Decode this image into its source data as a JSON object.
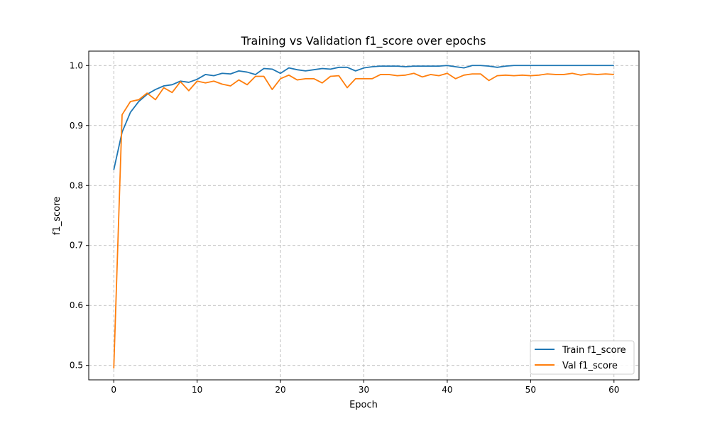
{
  "chart_data": {
    "type": "line",
    "title": "Training vs Validation f1_score over epochs",
    "xlabel": "Epoch",
    "ylabel": "f1_score",
    "xlim": [
      -3,
      63
    ],
    "ylim": [
      0.476,
      1.024
    ],
    "xticks": [
      0,
      10,
      20,
      30,
      40,
      50,
      60
    ],
    "yticks": [
      0.5,
      0.6,
      0.7,
      0.8,
      0.9,
      1.0
    ],
    "ytick_labels": [
      "0.5",
      "0.6",
      "0.7",
      "0.8",
      "0.9",
      "1.0"
    ],
    "grid": true,
    "legend_position": "lower-right",
    "x": [
      0,
      1,
      2,
      3,
      4,
      5,
      6,
      7,
      8,
      9,
      10,
      11,
      12,
      13,
      14,
      15,
      16,
      17,
      18,
      19,
      20,
      21,
      22,
      23,
      24,
      25,
      26,
      27,
      28,
      29,
      30,
      31,
      32,
      33,
      34,
      35,
      36,
      37,
      38,
      39,
      40,
      41,
      42,
      43,
      44,
      45,
      46,
      47,
      48,
      49,
      50,
      51,
      52,
      53,
      54,
      55,
      56,
      57,
      58,
      59,
      60
    ],
    "series": [
      {
        "name": "Train f1_score",
        "color": "#1f77b4",
        "values": [
          0.826,
          0.889,
          0.922,
          0.94,
          0.952,
          0.96,
          0.966,
          0.968,
          0.974,
          0.972,
          0.977,
          0.985,
          0.983,
          0.987,
          0.986,
          0.991,
          0.989,
          0.985,
          0.995,
          0.994,
          0.987,
          0.996,
          0.993,
          0.991,
          0.993,
          0.995,
          0.994,
          0.997,
          0.997,
          0.991,
          0.996,
          0.998,
          0.999,
          0.999,
          0.999,
          0.998,
          0.999,
          0.999,
          0.999,
          0.999,
          1.0,
          0.998,
          0.996,
          1.0,
          1.0,
          0.999,
          0.997,
          0.999,
          1.0,
          1.0,
          1.0,
          1.0,
          1.0,
          1.0,
          1.0,
          1.0,
          1.0,
          1.0,
          1.0,
          1.0,
          1.0
        ]
      },
      {
        "name": "Val f1_score",
        "color": "#ff7f0e",
        "values": [
          0.495,
          0.918,
          0.94,
          0.943,
          0.954,
          0.943,
          0.963,
          0.955,
          0.973,
          0.958,
          0.974,
          0.971,
          0.974,
          0.969,
          0.966,
          0.976,
          0.968,
          0.982,
          0.982,
          0.96,
          0.978,
          0.984,
          0.976,
          0.978,
          0.978,
          0.971,
          0.982,
          0.983,
          0.963,
          0.978,
          0.978,
          0.978,
          0.985,
          0.985,
          0.983,
          0.984,
          0.987,
          0.981,
          0.985,
          0.983,
          0.987,
          0.978,
          0.984,
          0.986,
          0.986,
          0.975,
          0.983,
          0.984,
          0.983,
          0.984,
          0.983,
          0.984,
          0.986,
          0.985,
          0.985,
          0.987,
          0.984,
          0.986,
          0.985,
          0.986,
          0.985
        ]
      }
    ]
  }
}
